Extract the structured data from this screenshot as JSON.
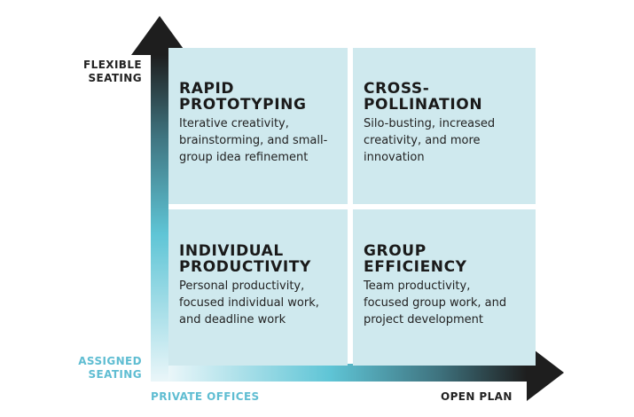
{
  "axes": {
    "y_top": [
      "FLEXIBLE",
      "SEATING"
    ],
    "y_bottom": [
      "ASSIGNED",
      "SEATING"
    ],
    "x_left": "PRIVATE OFFICES",
    "x_right": "OPEN PLAN"
  },
  "quadrants": {
    "top_left": {
      "title": "RAPID\nPROTOTYPING",
      "desc": "Iterative creativity,\nbrainstorming, and small-\ngroup idea refinement"
    },
    "top_right": {
      "title": "CROSS-\nPOLLINATION",
      "desc": "Silo-busting, increased\ncreativity, and more\ninnovation"
    },
    "bottom_left": {
      "title": "INDIVIDUAL\nPRODUCTIVITY",
      "desc": "Personal productivity,\nfocused individual work,\nand deadline work"
    },
    "bottom_right": {
      "title": "GROUP\nEFFICIENCY",
      "desc": "Team productivity,\nfocused group work, and\nproject development"
    }
  },
  "colors": {
    "panel": "#cfe9ee",
    "accent": "#5fbdd2",
    "dark": "#222222"
  }
}
